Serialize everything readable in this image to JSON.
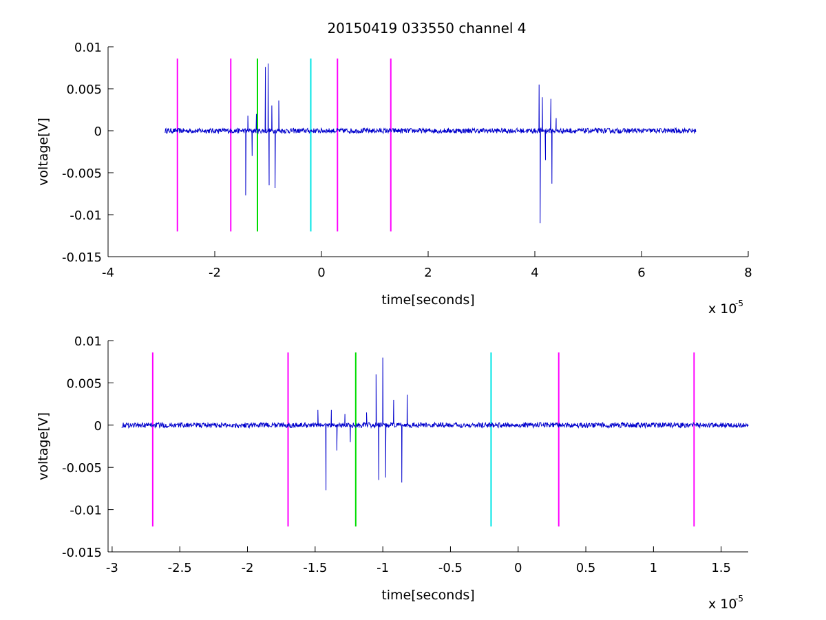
{
  "figure_title": "20150419 033550 channel 4",
  "colors": {
    "signal": "#0000cc",
    "magenta": "#ff00ff",
    "green": "#00dd00",
    "cyan": "#00e5e5",
    "axes": "#000000"
  },
  "chart_data": [
    {
      "type": "line",
      "title": "20150419 033550 channel 4",
      "xlabel": "time[seconds]",
      "ylabel": "voltage[V]",
      "x_exponent_label": "x 10",
      "x_exponent": "-5",
      "xlim": [
        -4,
        8
      ],
      "ylim": [
        -0.015,
        0.01
      ],
      "xticks": [
        -4,
        -2,
        0,
        2,
        4,
        6,
        8
      ],
      "xtick_labels": [
        "-4",
        "-2",
        "0",
        "2",
        "4",
        "6",
        "8"
      ],
      "yticks": [
        -0.015,
        -0.01,
        -0.005,
        0,
        0.005,
        0.01
      ],
      "ytick_labels": [
        "-0.015",
        "-0.01",
        "-0.005",
        "0",
        "0.005",
        "0.01"
      ],
      "grid": false,
      "series": [
        {
          "x_range": [
            -2.93,
            7.02
          ],
          "noise_amplitude": 0.0003,
          "bursts": [
            {
              "x": -1.42,
              "y": -0.0077
            },
            {
              "x": -1.38,
              "y": 0.0018
            },
            {
              "x": -1.3,
              "y": -0.003
            },
            {
              "x": -1.22,
              "y": 0.002
            },
            {
              "x": -1.05,
              "y": 0.0076
            },
            {
              "x": -1.0,
              "y": 0.008
            },
            {
              "x": -0.98,
              "y": -0.0065
            },
            {
              "x": -0.93,
              "y": 0.003
            },
            {
              "x": -0.87,
              "y": -0.0068
            },
            {
              "x": -0.8,
              "y": 0.0036
            },
            {
              "x": 4.08,
              "y": 0.0055
            },
            {
              "x": 4.1,
              "y": -0.011
            },
            {
              "x": 4.14,
              "y": 0.004
            },
            {
              "x": 4.2,
              "y": -0.0035
            },
            {
              "x": 4.3,
              "y": 0.0038
            },
            {
              "x": 4.32,
              "y": -0.0063
            },
            {
              "x": 4.4,
              "y": 0.0015
            }
          ]
        }
      ],
      "markers": [
        {
          "x": -2.7,
          "color": "magenta",
          "y_range": [
            -0.012,
            0.0086
          ]
        },
        {
          "x": -1.7,
          "color": "magenta",
          "y_range": [
            -0.012,
            0.0086
          ]
        },
        {
          "x": -1.2,
          "color": "green",
          "y_range": [
            -0.012,
            0.0086
          ]
        },
        {
          "x": -0.2,
          "color": "cyan",
          "y_range": [
            -0.012,
            0.0086
          ]
        },
        {
          "x": 0.3,
          "color": "magenta",
          "y_range": [
            -0.012,
            0.0086
          ]
        },
        {
          "x": 1.3,
          "color": "magenta",
          "y_range": [
            -0.012,
            0.0086
          ]
        }
      ]
    },
    {
      "type": "line",
      "title": "",
      "xlabel": "time[seconds]",
      "ylabel": "voltage[V]",
      "x_exponent_label": "x 10",
      "x_exponent": "-5",
      "xlim": [
        -3.03,
        1.7
      ],
      "ylim": [
        -0.015,
        0.01
      ],
      "xticks": [
        -3,
        -2.5,
        -2,
        -1.5,
        -1,
        -0.5,
        0,
        0.5,
        1,
        1.5
      ],
      "xtick_labels": [
        "-3",
        "-2.5",
        "-2",
        "-1.5",
        "-1",
        "-0.5",
        "0",
        "0.5",
        "1",
        "1.5"
      ],
      "yticks": [
        -0.015,
        -0.01,
        -0.005,
        0,
        0.005,
        0.01
      ],
      "ytick_labels": [
        "-0.015",
        "-0.01",
        "-0.005",
        "0",
        "0.005",
        "0.01"
      ],
      "grid": false,
      "series": [
        {
          "x_range": [
            -2.93,
            1.7
          ],
          "noise_amplitude": 0.0003,
          "bursts": [
            {
              "x": -1.48,
              "y": 0.0018
            },
            {
              "x": -1.42,
              "y": -0.0077
            },
            {
              "x": -1.38,
              "y": 0.0018
            },
            {
              "x": -1.34,
              "y": -0.003
            },
            {
              "x": -1.28,
              "y": 0.0013
            },
            {
              "x": -1.24,
              "y": -0.002
            },
            {
              "x": -1.12,
              "y": 0.0015
            },
            {
              "x": -1.05,
              "y": 0.006
            },
            {
              "x": -1.03,
              "y": -0.0065
            },
            {
              "x": -1.0,
              "y": 0.008
            },
            {
              "x": -0.98,
              "y": -0.0062
            },
            {
              "x": -0.92,
              "y": 0.003
            },
            {
              "x": -0.86,
              "y": -0.0068
            },
            {
              "x": -0.82,
              "y": 0.0036
            }
          ]
        }
      ],
      "markers": [
        {
          "x": -2.7,
          "color": "magenta",
          "y_range": [
            -0.012,
            0.0086
          ]
        },
        {
          "x": -1.7,
          "color": "magenta",
          "y_range": [
            -0.012,
            0.0086
          ]
        },
        {
          "x": -1.2,
          "color": "green",
          "y_range": [
            -0.012,
            0.0086
          ]
        },
        {
          "x": -0.2,
          "color": "cyan",
          "y_range": [
            -0.012,
            0.0086
          ]
        },
        {
          "x": 0.3,
          "color": "magenta",
          "y_range": [
            -0.012,
            0.0086
          ]
        },
        {
          "x": 1.3,
          "color": "magenta",
          "y_range": [
            -0.012,
            0.0086
          ]
        }
      ]
    }
  ]
}
